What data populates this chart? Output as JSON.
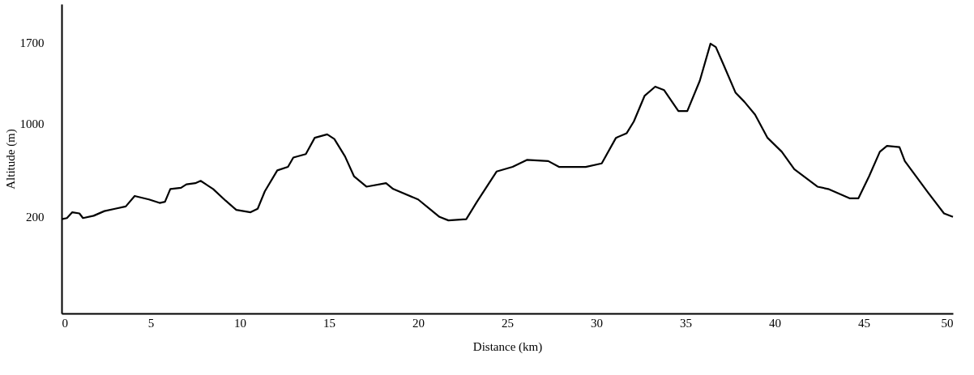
{
  "chart_data": {
    "type": "line",
    "xlabel": "Distance (km)",
    "ylabel": "Altitude (m)",
    "xlim": [
      0,
      50
    ],
    "xticks": [
      0,
      5,
      10,
      15,
      20,
      25,
      30,
      35,
      40,
      45,
      50
    ],
    "ylim": [
      -630,
      2030
    ],
    "yticks": [
      200,
      1000,
      1700
    ],
    "grid": false,
    "legend": false,
    "marker": "none",
    "line_style": "solid",
    "series": [
      {
        "color": "#000000",
        "x": [
          0,
          0.3,
          0.6,
          1.0,
          1.2,
          1.8,
          2.4,
          3.0,
          3.6,
          4.1,
          4.9,
          5.5,
          5.8,
          6.1,
          6.7,
          7.0,
          7.5,
          7.8,
          8.5,
          9.2,
          9.8,
          10.6,
          11.0,
          11.4,
          12.1,
          12.7,
          13.0,
          13.7,
          14.2,
          14.9,
          15.3,
          15.9,
          16.4,
          17.1,
          18.2,
          18.6,
          20.0,
          21.2,
          21.7,
          22.7,
          23.3,
          24.4,
          25.3,
          26.1,
          27.3,
          27.9,
          29.4,
          30.3,
          31.1,
          31.7,
          32.1,
          32.7,
          33.3,
          33.8,
          34.6,
          35.1,
          35.8,
          36.4,
          36.7,
          37.1,
          37.8,
          38.3,
          38.9,
          39.6,
          40.4,
          41.1,
          42.4,
          43.0,
          44.2,
          44.7,
          45.3,
          45.9,
          46.3,
          47.0,
          47.3,
          48.6,
          49.5,
          50.0
        ],
        "values": [
          180,
          190,
          240,
          230,
          190,
          210,
          250,
          270,
          290,
          380,
          350,
          320,
          330,
          440,
          450,
          480,
          490,
          510,
          440,
          340,
          260,
          240,
          270,
          420,
          600,
          630,
          710,
          740,
          880,
          910,
          870,
          720,
          550,
          460,
          490,
          440,
          350,
          200,
          170,
          180,
          330,
          590,
          630,
          690,
          680,
          630,
          630,
          660,
          880,
          920,
          1020,
          1240,
          1320,
          1290,
          1110,
          1110,
          1370,
          1690,
          1660,
          1520,
          1270,
          1190,
          1080,
          880,
          760,
          610,
          460,
          440,
          360,
          360,
          550,
          760,
          810,
          800,
          680,
          410,
          230,
          200
        ]
      }
    ]
  }
}
